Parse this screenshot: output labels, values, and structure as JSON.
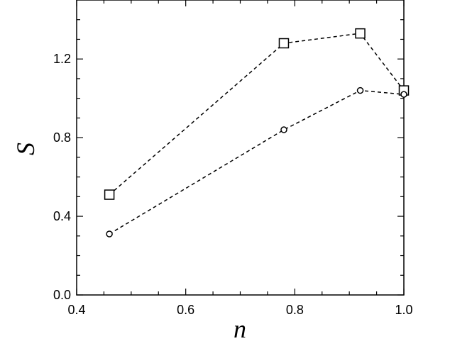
{
  "chart_data": {
    "type": "line",
    "xlabel": "n",
    "ylabel": "S",
    "xlim": [
      0.4,
      1.0
    ],
    "ylim": [
      0.0,
      1.5
    ],
    "xticks": [
      0.4,
      0.6,
      0.8,
      1.0
    ],
    "xtick_labels": [
      "0.4",
      "0.6",
      "0.8",
      "1.0"
    ],
    "yticks": [
      0.0,
      0.4,
      0.8,
      1.2
    ],
    "ytick_labels": [
      "0.0",
      "0.4",
      "0.8",
      "1.2"
    ],
    "grid": false,
    "legend": "none",
    "series": [
      {
        "marker": "square",
        "line_style": "dashed",
        "color": "#000000",
        "x": [
          0.46,
          0.78,
          0.92,
          1.0
        ],
        "y": [
          0.51,
          1.28,
          1.33,
          1.04
        ]
      },
      {
        "marker": "circle",
        "line_style": "dashed",
        "color": "#000000",
        "x": [
          0.46,
          0.78,
          0.92,
          1.0
        ],
        "y": [
          0.31,
          0.84,
          1.04,
          1.02
        ]
      }
    ]
  }
}
